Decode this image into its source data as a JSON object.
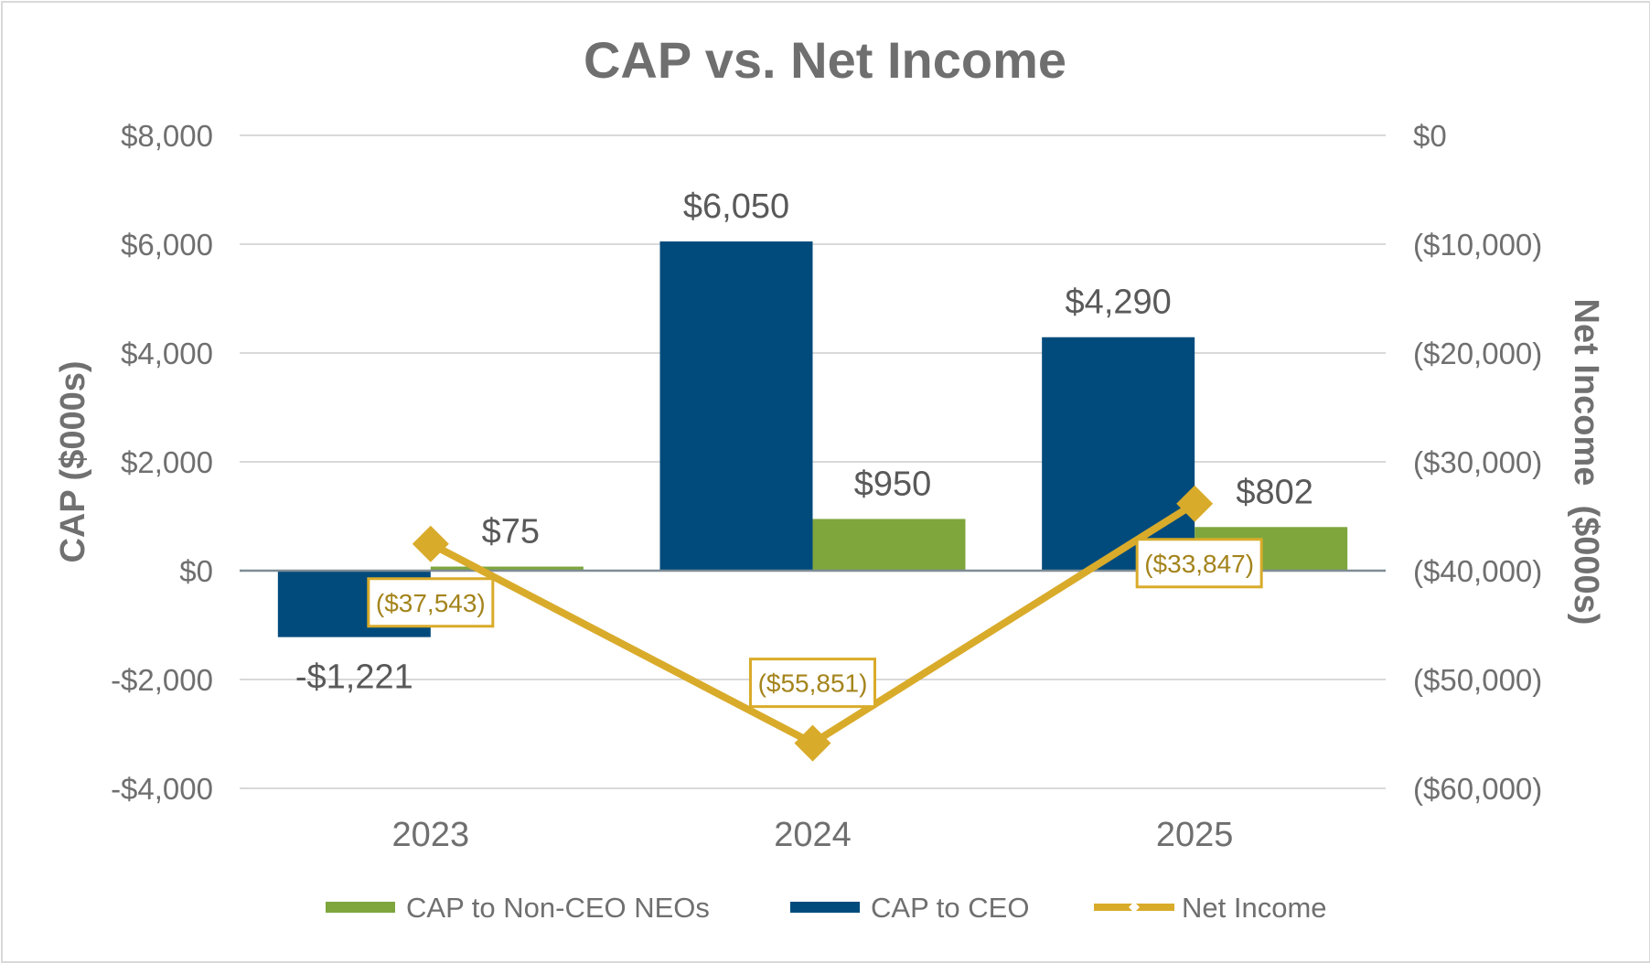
{
  "chart_data": {
    "type": "bar",
    "title": "CAP vs. Net Income",
    "categories": [
      "2023",
      "2024",
      "2025"
    ],
    "left_axis": {
      "label": "CAP ($000s)",
      "range": [
        -4000,
        8000
      ],
      "ticks": [
        8000,
        6000,
        4000,
        2000,
        0,
        -2000,
        -4000
      ],
      "tick_labels": [
        "$8,000",
        "$6,000",
        "$4,000",
        "$2,000",
        "$0",
        "-$2,000",
        "-$4,000"
      ]
    },
    "right_axis": {
      "label": "Net Income  ($000s)",
      "range": [
        -60000,
        0
      ],
      "ticks": [
        0,
        -10000,
        -20000,
        -30000,
        -40000,
        -50000,
        -60000
      ],
      "tick_labels": [
        "$0",
        "($10,000)",
        "($20,000)",
        "($30,000)",
        "($40,000)",
        "($50,000)",
        "($60,000)"
      ]
    },
    "series": [
      {
        "name": "CAP to CEO",
        "kind": "bar",
        "axis": "left",
        "color": "#004b7c",
        "values": [
          -1221,
          6050,
          4290
        ],
        "labels": [
          "-$1,221",
          "$6,050",
          "$4,290"
        ]
      },
      {
        "name": "CAP to Non-CEO NEOs",
        "kind": "bar",
        "axis": "left",
        "color": "#7ea63d",
        "values": [
          75,
          950,
          802
        ],
        "labels": [
          "$75",
          "$950",
          "$802"
        ]
      },
      {
        "name": "Net Income",
        "kind": "line",
        "axis": "right",
        "color": "#d9ab2a",
        "label_color": "#a4841c",
        "values": [
          -37543,
          -55851,
          -33847
        ],
        "labels": [
          "($37,543)",
          "($55,851)",
          "($33,847)"
        ]
      }
    ],
    "legend": {
      "position": "bottom",
      "items": [
        {
          "name": "CAP to Non-CEO NEOs",
          "color": "#7ea63d",
          "kind": "bar"
        },
        {
          "name": "CAP to CEO",
          "color": "#004b7c",
          "kind": "bar"
        },
        {
          "name": "Net Income",
          "color": "#d9ab2a",
          "kind": "line"
        }
      ]
    },
    "colors": {
      "text": "#6f6f6f",
      "axis_title": "#707070",
      "data_label": "#595959",
      "grid": "#d9d9d9",
      "zero_line": "#7f8c95"
    },
    "grid": true
  }
}
